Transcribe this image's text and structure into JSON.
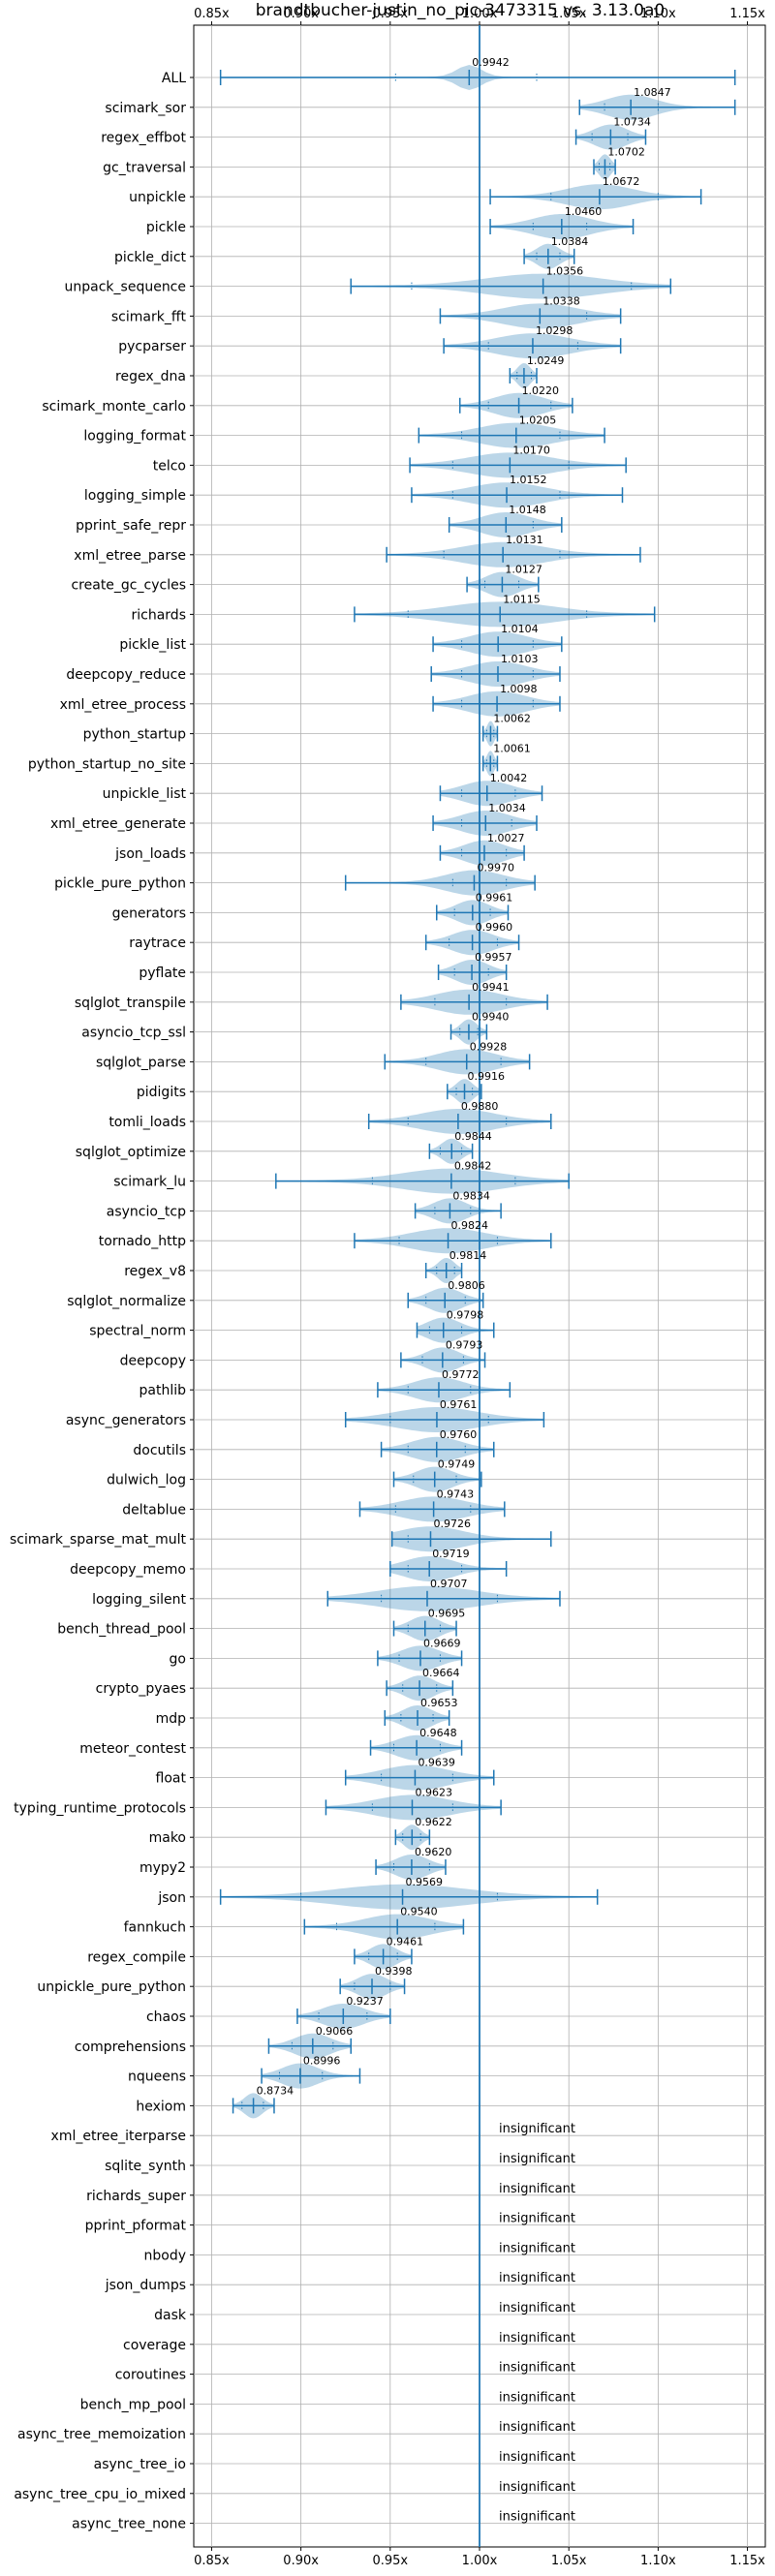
{
  "chart_data": {
    "type": "violin",
    "title": "brandtbucher-justin_no_pic-3473315 vs. 3.13.0a0",
    "xlim": [
      0.84,
      1.16
    ],
    "xticks": [
      0.85,
      0.9,
      0.95,
      1.0,
      1.05,
      1.1,
      1.15
    ],
    "xtick_labels": [
      "0.85x",
      "0.90x",
      "0.95x",
      "1.00x",
      "1.05x",
      "1.10x",
      "1.15x"
    ],
    "reference_x": 1.0,
    "grid": true,
    "colors": {
      "violin": "#1f77b4",
      "violin_fill_opacity": 0.3,
      "line": "#1f77b4",
      "grid": "#b0b0b0"
    },
    "benchmarks": [
      {
        "name": "ALL",
        "label": "0.9942",
        "mean": 0.9942,
        "min": 0.855,
        "max": 1.143,
        "q1": 0.953,
        "q3": 1.032,
        "spread": 0.015
      },
      {
        "name": "scimark_sor",
        "label": "1.0847",
        "mean": 1.0847,
        "min": 1.056,
        "max": 1.143,
        "q1": 1.07,
        "q3": 1.1,
        "spread": 0.03
      },
      {
        "name": "regex_effbot",
        "label": "1.0734",
        "mean": 1.0734,
        "min": 1.054,
        "max": 1.093,
        "q1": 1.063,
        "q3": 1.083,
        "spread": 0.02
      },
      {
        "name": "gc_traversal",
        "label": "1.0702",
        "mean": 1.0702,
        "min": 1.064,
        "max": 1.076,
        "q1": 1.067,
        "q3": 1.073,
        "spread": 0.007
      },
      {
        "name": "unpickle",
        "label": "1.0672",
        "mean": 1.0672,
        "min": 1.006,
        "max": 1.124,
        "q1": 1.04,
        "q3": 1.1,
        "spread": 0.04
      },
      {
        "name": "pickle",
        "label": "1.0460",
        "mean": 1.046,
        "min": 1.006,
        "max": 1.086,
        "q1": 1.03,
        "q3": 1.06,
        "spread": 0.035
      },
      {
        "name": "pickle_dict",
        "label": "1.0384",
        "mean": 1.0384,
        "min": 1.025,
        "max": 1.053,
        "q1": 1.032,
        "q3": 1.045,
        "spread": 0.014
      },
      {
        "name": "unpack_sequence",
        "label": "1.0356",
        "mean": 1.0356,
        "min": 0.928,
        "max": 1.107,
        "q1": 0.962,
        "q3": 1.085,
        "spread": 0.07
      },
      {
        "name": "scimark_fft",
        "label": "1.0338",
        "mean": 1.0338,
        "min": 0.978,
        "max": 1.079,
        "q1": 1.0,
        "q3": 1.06,
        "spread": 0.045
      },
      {
        "name": "pycparser",
        "label": "1.0298",
        "mean": 1.0298,
        "min": 0.98,
        "max": 1.079,
        "q1": 1.005,
        "q3": 1.055,
        "spread": 0.045
      },
      {
        "name": "regex_dna",
        "label": "1.0249",
        "mean": 1.0249,
        "min": 1.017,
        "max": 1.032,
        "q1": 1.021,
        "q3": 1.029,
        "spread": 0.008
      },
      {
        "name": "scimark_monte_carlo",
        "label": "1.0220",
        "mean": 1.022,
        "min": 0.989,
        "max": 1.052,
        "q1": 1.005,
        "q3": 1.04,
        "spread": 0.03
      },
      {
        "name": "logging_format",
        "label": "1.0205",
        "mean": 1.0205,
        "min": 0.966,
        "max": 1.07,
        "q1": 0.99,
        "q3": 1.045,
        "spread": 0.045
      },
      {
        "name": "telco",
        "label": "1.0170",
        "mean": 1.017,
        "min": 0.961,
        "max": 1.082,
        "q1": 0.985,
        "q3": 1.05,
        "spread": 0.05
      },
      {
        "name": "logging_simple",
        "label": "1.0152",
        "mean": 1.0152,
        "min": 0.962,
        "max": 1.08,
        "q1": 0.985,
        "q3": 1.045,
        "spread": 0.045
      },
      {
        "name": "pprint_safe_repr",
        "label": "1.0148",
        "mean": 1.0148,
        "min": 0.983,
        "max": 1.046,
        "q1": 1.0,
        "q3": 1.03,
        "spread": 0.03
      },
      {
        "name": "xml_etree_parse",
        "label": "1.0131",
        "mean": 1.0131,
        "min": 0.948,
        "max": 1.09,
        "q1": 0.98,
        "q3": 1.045,
        "spread": 0.05
      },
      {
        "name": "create_gc_cycles",
        "label": "1.0127",
        "mean": 1.0127,
        "min": 0.993,
        "max": 1.033,
        "q1": 1.003,
        "q3": 1.022,
        "spread": 0.02
      },
      {
        "name": "richards",
        "label": "1.0115",
        "mean": 1.0115,
        "min": 0.93,
        "max": 1.098,
        "q1": 0.96,
        "q3": 1.06,
        "spread": 0.065
      },
      {
        "name": "pickle_list",
        "label": "1.0104",
        "mean": 1.0104,
        "min": 0.974,
        "max": 1.046,
        "q1": 0.99,
        "q3": 1.03,
        "spread": 0.035
      },
      {
        "name": "deepcopy_reduce",
        "label": "1.0103",
        "mean": 1.0103,
        "min": 0.973,
        "max": 1.045,
        "q1": 0.99,
        "q3": 1.03,
        "spread": 0.035
      },
      {
        "name": "xml_etree_process",
        "label": "1.0098",
        "mean": 1.0098,
        "min": 0.974,
        "max": 1.045,
        "q1": 0.99,
        "q3": 1.03,
        "spread": 0.035
      },
      {
        "name": "python_startup",
        "label": "1.0062",
        "mean": 1.0062,
        "min": 1.002,
        "max": 1.01,
        "q1": 1.004,
        "q3": 1.008,
        "spread": 0.004
      },
      {
        "name": "python_startup_no_site",
        "label": "1.0061",
        "mean": 1.0061,
        "min": 1.002,
        "max": 1.01,
        "q1": 1.004,
        "q3": 1.008,
        "spread": 0.004
      },
      {
        "name": "unpickle_list",
        "label": "1.0042",
        "mean": 1.0042,
        "min": 0.978,
        "max": 1.035,
        "q1": 0.99,
        "q3": 1.02,
        "spread": 0.03
      },
      {
        "name": "xml_etree_generate",
        "label": "1.0034",
        "mean": 1.0034,
        "min": 0.974,
        "max": 1.032,
        "q1": 0.99,
        "q3": 1.018,
        "spread": 0.03
      },
      {
        "name": "json_loads",
        "label": "1.0027",
        "mean": 1.0027,
        "min": 0.978,
        "max": 1.025,
        "q1": 0.99,
        "q3": 1.015,
        "spread": 0.025
      },
      {
        "name": "pickle_pure_python",
        "label": "0.9970",
        "mean": 0.997,
        "min": 0.925,
        "max": 1.031,
        "q1": 0.985,
        "q3": 1.015,
        "spread": 0.035
      },
      {
        "name": "generators",
        "label": "0.9961",
        "mean": 0.9961,
        "min": 0.976,
        "max": 1.016,
        "q1": 0.986,
        "q3": 1.006,
        "spread": 0.02
      },
      {
        "name": "raytrace",
        "label": "0.9960",
        "mean": 0.996,
        "min": 0.97,
        "max": 1.022,
        "q1": 0.983,
        "q3": 1.01,
        "spread": 0.025
      },
      {
        "name": "pyflate",
        "label": "0.9957",
        "mean": 0.9957,
        "min": 0.977,
        "max": 1.015,
        "q1": 0.986,
        "q3": 1.005,
        "spread": 0.02
      },
      {
        "name": "sqlglot_transpile",
        "label": "0.9941",
        "mean": 0.9941,
        "min": 0.956,
        "max": 1.038,
        "q1": 0.975,
        "q3": 1.015,
        "spread": 0.04
      },
      {
        "name": "asyncio_tcp_ssl",
        "label": "0.9940",
        "mean": 0.994,
        "min": 0.984,
        "max": 1.004,
        "q1": 0.989,
        "q3": 0.999,
        "spread": 0.01
      },
      {
        "name": "sqlglot_parse",
        "label": "0.9928",
        "mean": 0.9928,
        "min": 0.947,
        "max": 1.028,
        "q1": 0.97,
        "q3": 1.012,
        "spread": 0.035
      },
      {
        "name": "pidigits",
        "label": "0.9916",
        "mean": 0.9916,
        "min": 0.982,
        "max": 1.001,
        "q1": 0.987,
        "q3": 0.996,
        "spread": 0.01
      },
      {
        "name": "tomli_loads",
        "label": "0.9880",
        "mean": 0.988,
        "min": 0.938,
        "max": 1.04,
        "q1": 0.96,
        "q3": 1.015,
        "spread": 0.045
      },
      {
        "name": "sqlglot_optimize",
        "label": "0.9844",
        "mean": 0.9844,
        "min": 0.972,
        "max": 0.996,
        "q1": 0.978,
        "q3": 0.99,
        "spread": 0.012
      },
      {
        "name": "scimark_lu",
        "label": "0.9842",
        "mean": 0.9842,
        "min": 0.886,
        "max": 1.05,
        "q1": 0.94,
        "q3": 1.02,
        "spread": 0.06
      },
      {
        "name": "asyncio_tcp",
        "label": "0.9834",
        "mean": 0.9834,
        "min": 0.964,
        "max": 1.012,
        "q1": 0.975,
        "q3": 0.995,
        "spread": 0.02
      },
      {
        "name": "tornado_http",
        "label": "0.9824",
        "mean": 0.9824,
        "min": 0.93,
        "max": 1.04,
        "q1": 0.955,
        "q3": 1.01,
        "spread": 0.045
      },
      {
        "name": "regex_v8",
        "label": "0.9814",
        "mean": 0.9814,
        "min": 0.97,
        "max": 0.99,
        "q1": 0.976,
        "q3": 0.986,
        "spread": 0.01
      },
      {
        "name": "sqlglot_normalize",
        "label": "0.9806",
        "mean": 0.9806,
        "min": 0.96,
        "max": 1.002,
        "q1": 0.97,
        "q3": 0.992,
        "spread": 0.02
      },
      {
        "name": "spectral_norm",
        "label": "0.9798",
        "mean": 0.9798,
        "min": 0.965,
        "max": 1.008,
        "q1": 0.972,
        "q3": 0.99,
        "spread": 0.02
      },
      {
        "name": "deepcopy",
        "label": "0.9793",
        "mean": 0.9793,
        "min": 0.956,
        "max": 1.003,
        "q1": 0.968,
        "q3": 0.991,
        "spread": 0.02
      },
      {
        "name": "pathlib",
        "label": "0.9772",
        "mean": 0.9772,
        "min": 0.943,
        "max": 1.017,
        "q1": 0.96,
        "q3": 0.995,
        "spread": 0.03
      },
      {
        "name": "async_generators",
        "label": "0.9761",
        "mean": 0.9761,
        "min": 0.925,
        "max": 1.036,
        "q1": 0.95,
        "q3": 1.005,
        "spread": 0.05
      },
      {
        "name": "docutils",
        "label": "0.9760",
        "mean": 0.976,
        "min": 0.945,
        "max": 1.008,
        "q1": 0.96,
        "q3": 0.992,
        "spread": 0.03
      },
      {
        "name": "dulwich_log",
        "label": "0.9749",
        "mean": 0.9749,
        "min": 0.952,
        "max": 1.001,
        "q1": 0.963,
        "q3": 0.987,
        "spread": 0.022
      },
      {
        "name": "deltablue",
        "label": "0.9743",
        "mean": 0.9743,
        "min": 0.933,
        "max": 1.014,
        "q1": 0.953,
        "q3": 0.995,
        "spread": 0.04
      },
      {
        "name": "scimark_sparse_mat_mult",
        "label": "0.9726",
        "mean": 0.9726,
        "min": 0.951,
        "max": 1.04,
        "q1": 0.96,
        "q3": 1.0,
        "spread": 0.04
      },
      {
        "name": "deepcopy_memo",
        "label": "0.9719",
        "mean": 0.9719,
        "min": 0.95,
        "max": 1.015,
        "q1": 0.96,
        "q3": 0.99,
        "spread": 0.03
      },
      {
        "name": "logging_silent",
        "label": "0.9707",
        "mean": 0.9707,
        "min": 0.915,
        "max": 1.045,
        "q1": 0.945,
        "q3": 1.01,
        "spread": 0.06
      },
      {
        "name": "bench_thread_pool",
        "label": "0.9695",
        "mean": 0.9695,
        "min": 0.952,
        "max": 0.987,
        "q1": 0.96,
        "q3": 0.978,
        "spread": 0.018
      },
      {
        "name": "go",
        "label": "0.9669",
        "mean": 0.9669,
        "min": 0.943,
        "max": 0.99,
        "q1": 0.955,
        "q3": 0.978,
        "spread": 0.023
      },
      {
        "name": "crypto_pyaes",
        "label": "0.9664",
        "mean": 0.9664,
        "min": 0.948,
        "max": 0.985,
        "q1": 0.957,
        "q3": 0.976,
        "spread": 0.018
      },
      {
        "name": "mdp",
        "label": "0.9653",
        "mean": 0.9653,
        "min": 0.947,
        "max": 0.983,
        "q1": 0.956,
        "q3": 0.974,
        "spread": 0.018
      },
      {
        "name": "meteor_contest",
        "label": "0.9648",
        "mean": 0.9648,
        "min": 0.939,
        "max": 0.99,
        "q1": 0.952,
        "q3": 0.978,
        "spread": 0.025
      },
      {
        "name": "float",
        "label": "0.9639",
        "mean": 0.9639,
        "min": 0.925,
        "max": 1.008,
        "q1": 0.945,
        "q3": 0.985,
        "spread": 0.04
      },
      {
        "name": "typing_runtime_protocols",
        "label": "0.9623",
        "mean": 0.9623,
        "min": 0.914,
        "max": 1.012,
        "q1": 0.94,
        "q3": 0.985,
        "spread": 0.045
      },
      {
        "name": "mako",
        "label": "0.9622",
        "mean": 0.9622,
        "min": 0.953,
        "max": 0.972,
        "q1": 0.957,
        "q3": 0.967,
        "spread": 0.01
      },
      {
        "name": "mypy2",
        "label": "0.9620",
        "mean": 0.962,
        "min": 0.942,
        "max": 0.981,
        "q1": 0.952,
        "q3": 0.972,
        "spread": 0.02
      },
      {
        "name": "json",
        "label": "0.9569",
        "mean": 0.9569,
        "min": 0.855,
        "max": 1.066,
        "q1": 0.9,
        "q3": 1.01,
        "spread": 0.08
      },
      {
        "name": "fannkuch",
        "label": "0.9540",
        "mean": 0.954,
        "min": 0.902,
        "max": 0.991,
        "q1": 0.92,
        "q3": 0.975,
        "spread": 0.04
      },
      {
        "name": "regex_compile",
        "label": "0.9461",
        "mean": 0.9461,
        "min": 0.93,
        "max": 0.962,
        "q1": 0.938,
        "q3": 0.954,
        "spread": 0.016
      },
      {
        "name": "unpickle_pure_python",
        "label": "0.9398",
        "mean": 0.9398,
        "min": 0.922,
        "max": 0.958,
        "q1": 0.93,
        "q3": 0.95,
        "spread": 0.018
      },
      {
        "name": "chaos",
        "label": "0.9237",
        "mean": 0.9237,
        "min": 0.898,
        "max": 0.95,
        "q1": 0.91,
        "q3": 0.937,
        "spread": 0.025
      },
      {
        "name": "comprehensions",
        "label": "0.9066",
        "mean": 0.9066,
        "min": 0.882,
        "max": 0.928,
        "q1": 0.895,
        "q3": 0.918,
        "spread": 0.022
      },
      {
        "name": "nqueens",
        "label": "0.8996",
        "mean": 0.8996,
        "min": 0.878,
        "max": 0.933,
        "q1": 0.888,
        "q3": 0.912,
        "spread": 0.022
      },
      {
        "name": "hexiom",
        "label": "0.8734",
        "mean": 0.8734,
        "min": 0.862,
        "max": 0.885,
        "q1": 0.867,
        "q3": 0.879,
        "spread": 0.011
      }
    ],
    "insignificant_label": "insignificant",
    "insignificant": [
      "xml_etree_iterparse",
      "sqlite_synth",
      "richards_super",
      "pprint_pformat",
      "nbody",
      "json_dumps",
      "dask",
      "coverage",
      "coroutines",
      "bench_mp_pool",
      "async_tree_memoization",
      "async_tree_io",
      "async_tree_cpu_io_mixed",
      "async_tree_none"
    ]
  }
}
